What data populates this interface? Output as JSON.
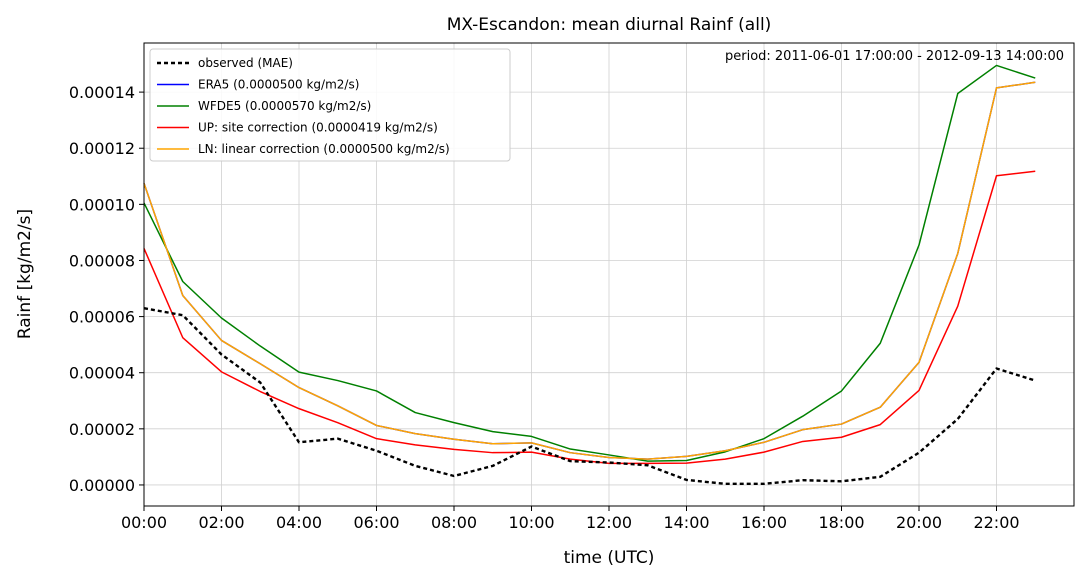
{
  "chart_data": {
    "type": "line",
    "title": "MX-Escandon: mean diurnal Rainf (all)",
    "annotation": "period: 2011-06-01 17:00:00 - 2012-09-13 14:00:00",
    "xlabel": "time (UTC)",
    "ylabel": "Rainf [kg/m2/s]",
    "x": [
      0,
      1,
      2,
      3,
      4,
      5,
      6,
      7,
      8,
      9,
      10,
      11,
      12,
      13,
      14,
      15,
      16,
      17,
      18,
      19,
      20,
      21,
      22,
      23
    ],
    "xlim": [
      0,
      24
    ],
    "ylim": [
      -7.5e-06,
      0.0001575
    ],
    "xticks": [
      {
        "v": 0,
        "label": "00:00"
      },
      {
        "v": 2,
        "label": "02:00"
      },
      {
        "v": 4,
        "label": "04:00"
      },
      {
        "v": 6,
        "label": "06:00"
      },
      {
        "v": 8,
        "label": "08:00"
      },
      {
        "v": 10,
        "label": "10:00"
      },
      {
        "v": 12,
        "label": "12:00"
      },
      {
        "v": 14,
        "label": "14:00"
      },
      {
        "v": 16,
        "label": "16:00"
      },
      {
        "v": 18,
        "label": "18:00"
      },
      {
        "v": 20,
        "label": "20:00"
      },
      {
        "v": 22,
        "label": "22:00"
      }
    ],
    "yticks": [
      {
        "v": 0,
        "label": "0.00000"
      },
      {
        "v": 2e-05,
        "label": "0.00002"
      },
      {
        "v": 4e-05,
        "label": "0.00004"
      },
      {
        "v": 6e-05,
        "label": "0.00006"
      },
      {
        "v": 8e-05,
        "label": "0.00008"
      },
      {
        "v": 0.0001,
        "label": "0.00010"
      },
      {
        "v": 0.00012,
        "label": "0.00012"
      },
      {
        "v": 0.00014,
        "label": "0.00014"
      }
    ],
    "grid": true,
    "legend_position": "top-left",
    "series": [
      {
        "name": "observed (MAE)",
        "color": "#000000",
        "style": "dotted",
        "values": [
          6.3e-05,
          6.05e-05,
          4.65e-05,
          3.65e-05,
          1.52e-05,
          1.65e-05,
          1.22e-05,
          6.8e-06,
          3.2e-06,
          6.8e-06,
          1.37e-05,
          8.5e-06,
          8e-06,
          7e-06,
          1.8e-06,
          4e-07,
          4e-07,
          1.7e-06,
          1.3e-06,
          2.9e-06,
          1.15e-05,
          2.35e-05,
          4.15e-05,
          3.72e-05
        ]
      },
      {
        "name": "ERA5 (0.0000500 kg/m2/s)",
        "color": "#0000ff",
        "style": "solid",
        "values": [
          0.0001075,
          6.75e-05,
          5.15e-05,
          4.32e-05,
          3.47e-05,
          2.82e-05,
          2.12e-05,
          1.83e-05,
          1.63e-05,
          1.47e-05,
          1.5e-05,
          1.15e-05,
          9.8e-06,
          9.2e-06,
          1.02e-05,
          1.22e-05,
          1.52e-05,
          1.97e-05,
          2.17e-05,
          2.77e-05,
          4.37e-05,
          8.25e-05,
          0.0001415,
          0.0001435
        ]
      },
      {
        "name": "WFDE5 (0.0000570 kg/m2/s)",
        "color": "#008000",
        "style": "solid",
        "values": [
          0.0001005,
          7.25e-05,
          5.95e-05,
          4.95e-05,
          4.02e-05,
          3.72e-05,
          3.35e-05,
          2.58e-05,
          2.22e-05,
          1.9e-05,
          1.73e-05,
          1.28e-05,
          1.07e-05,
          8.5e-06,
          8.7e-06,
          1.18e-05,
          1.65e-05,
          2.45e-05,
          3.35e-05,
          5.05e-05,
          8.55e-05,
          0.0001395,
          0.0001495,
          0.000145
        ]
      },
      {
        "name": "UP: site correction (0.0000419 kg/m2/s)",
        "color": "#ff0000",
        "style": "solid",
        "values": [
          8.43e-05,
          5.25e-05,
          4.03e-05,
          3.33e-05,
          2.72e-05,
          2.22e-05,
          1.65e-05,
          1.43e-05,
          1.27e-05,
          1.15e-05,
          1.17e-05,
          9.2e-06,
          7.7e-06,
          7.7e-06,
          7.8e-06,
          9.2e-06,
          1.17e-05,
          1.55e-05,
          1.7e-05,
          2.15e-05,
          3.37e-05,
          6.37e-05,
          0.0001102,
          0.0001118
        ]
      },
      {
        "name": "LN: linear correction (0.0000500 kg/m2/s)",
        "color": "#ffa500",
        "style": "solid",
        "values": [
          0.0001075,
          6.75e-05,
          5.15e-05,
          4.32e-05,
          3.47e-05,
          2.82e-05,
          2.12e-05,
          1.83e-05,
          1.63e-05,
          1.47e-05,
          1.5e-05,
          1.15e-05,
          9.8e-06,
          9.2e-06,
          1.02e-05,
          1.22e-05,
          1.52e-05,
          1.97e-05,
          2.17e-05,
          2.77e-05,
          4.37e-05,
          8.25e-05,
          0.0001415,
          0.0001435
        ]
      }
    ]
  }
}
